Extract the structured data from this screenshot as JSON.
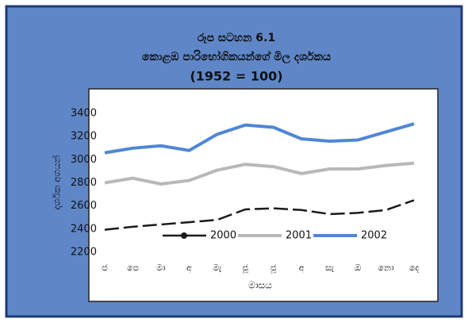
{
  "chart_data": {
    "type": "line",
    "title": "රූප සටහන 6.1",
    "subtitle": "කොළඹ පාරිභෝගිකයන්ගේ මිල දර්ශකය",
    "note": "(1952 = 100)",
    "y_label": "දර්ශක අගයන්",
    "x_label": "මාසය",
    "categories": [
      "ජ",
      "පෙ",
      "මා",
      "අ",
      "මැ",
      "ජූ",
      "ජූ",
      "අ",
      "සැ",
      "ඔ",
      "නො",
      "දෙ"
    ],
    "series": [
      {
        "name": "2000",
        "color": "#1a1a1a",
        "dashed": true,
        "values": [
          2395,
          2420,
          2440,
          2460,
          2480,
          2570,
          2580,
          2565,
          2530,
          2540,
          2565,
          2650
        ]
      },
      {
        "name": "2001",
        "color": "#b8b8b8",
        "dashed": false,
        "values": [
          2800,
          2840,
          2790,
          2820,
          2910,
          2960,
          2940,
          2880,
          2920,
          2920,
          2950,
          2970
        ]
      },
      {
        "name": "2002",
        "color": "#4f86d6",
        "dashed": false,
        "values": [
          3060,
          3100,
          3120,
          3080,
          3220,
          3300,
          3280,
          3180,
          3160,
          3170,
          3240,
          3310
        ]
      }
    ],
    "ylim": [
      2200,
      3400
    ],
    "yticks": [
      2200,
      2400,
      2600,
      2800,
      3000,
      3200,
      3400
    ],
    "grid": false
  }
}
